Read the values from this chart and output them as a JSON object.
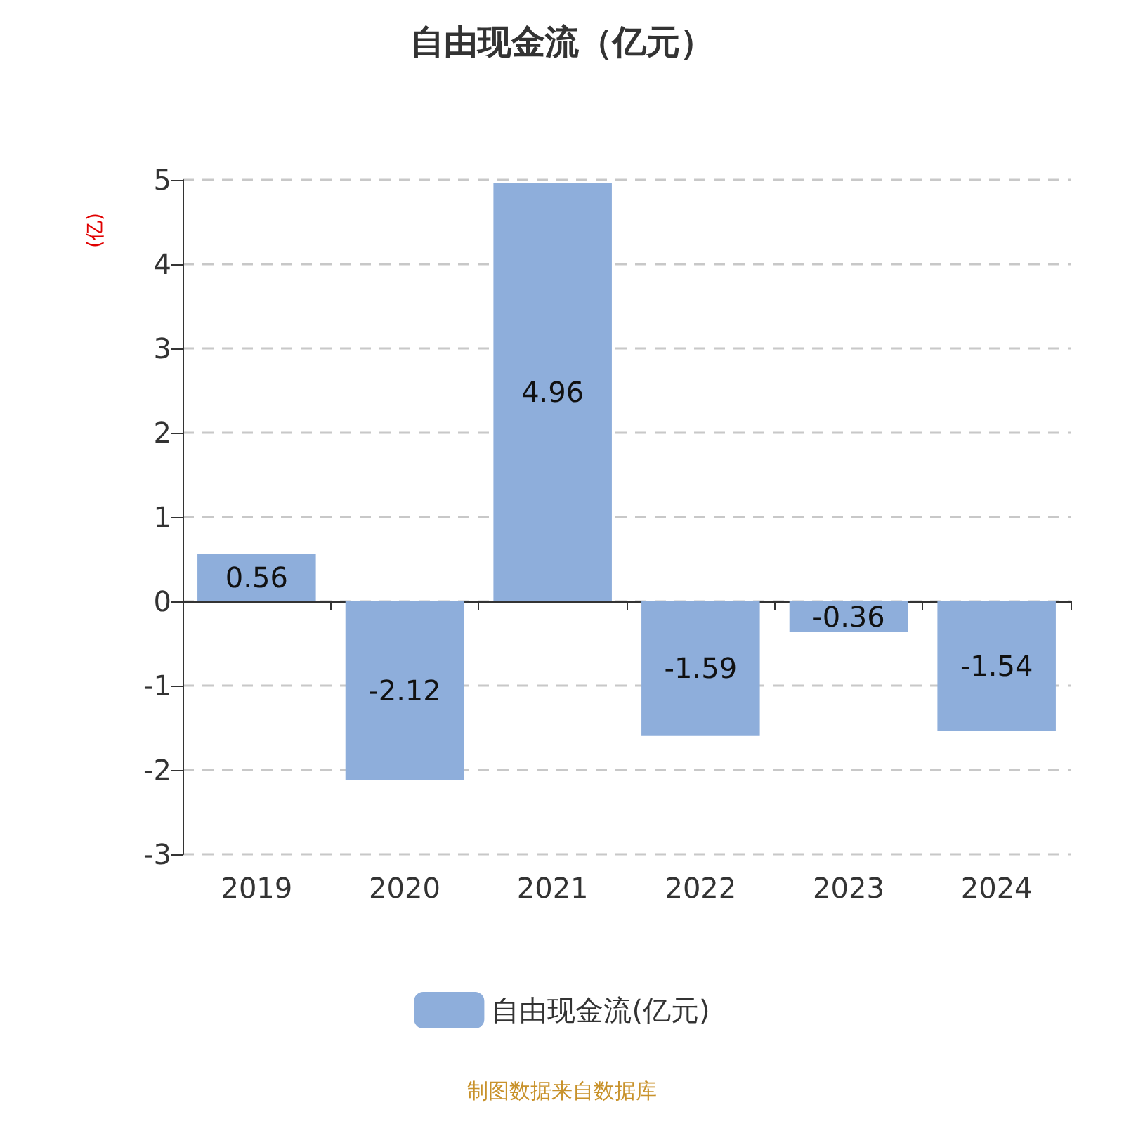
{
  "chart_data": {
    "type": "bar",
    "title": "自由现金流（亿元）",
    "ylabel": "(亿)",
    "categories": [
      "2019",
      "2020",
      "2021",
      "2022",
      "2023",
      "2024"
    ],
    "series": [
      {
        "name": "自由现金流(亿元)",
        "color": "#8eaedb",
        "values": [
          0.56,
          -2.12,
          4.96,
          -1.59,
          -0.36,
          -1.54
        ]
      }
    ],
    "ylim": [
      -3,
      5
    ],
    "yticks": [
      -3,
      -2,
      -1,
      0,
      1,
      2,
      3,
      4,
      5
    ],
    "grid": "y",
    "legend": "bottom",
    "data_labels": true,
    "annotations": [
      "制图数据来自数据库"
    ]
  }
}
